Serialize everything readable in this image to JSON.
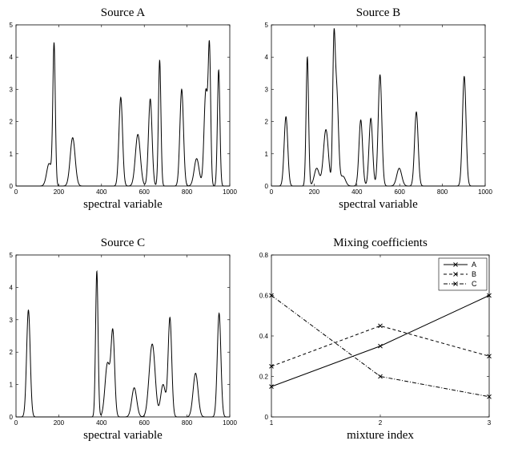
{
  "chart_data": [
    {
      "type": "line",
      "title": "Source A",
      "xlabel": "spectral variable",
      "ylabel": "",
      "xlim": [
        0,
        1000
      ],
      "ylim": [
        0,
        5
      ],
      "xticks": [
        0,
        200,
        400,
        600,
        800,
        1000
      ],
      "yticks": [
        0,
        1,
        2,
        3,
        4,
        5
      ],
      "grid": false,
      "line_color": "#000000",
      "peaks": [
        {
          "x": 155,
          "y": 0.7
        },
        {
          "x": 178,
          "y": 4.35
        },
        {
          "x": 265,
          "y": 1.5
        },
        {
          "x": 490,
          "y": 2.75
        },
        {
          "x": 570,
          "y": 1.6
        },
        {
          "x": 628,
          "y": 2.7
        },
        {
          "x": 672,
          "y": 3.9
        },
        {
          "x": 775,
          "y": 3.0
        },
        {
          "x": 845,
          "y": 0.85
        },
        {
          "x": 888,
          "y": 2.95
        },
        {
          "x": 905,
          "y": 4.1
        },
        {
          "x": 948,
          "y": 3.6
        }
      ]
    },
    {
      "type": "line",
      "title": "Source B",
      "xlabel": "spectral variable",
      "ylabel": "",
      "xlim": [
        0,
        1000
      ],
      "ylim": [
        0,
        5
      ],
      "xticks": [
        0,
        200,
        400,
        600,
        800,
        1000
      ],
      "yticks": [
        0,
        1,
        2,
        3,
        4,
        5
      ],
      "grid": false,
      "line_color": "#000000",
      "peaks": [
        {
          "x": 68,
          "y": 2.15
        },
        {
          "x": 168,
          "y": 4.0
        },
        {
          "x": 212,
          "y": 0.55
        },
        {
          "x": 255,
          "y": 1.75
        },
        {
          "x": 292,
          "y": 3.85
        },
        {
          "x": 305,
          "y": 2.95
        },
        {
          "x": 335,
          "y": 0.3
        },
        {
          "x": 418,
          "y": 2.05
        },
        {
          "x": 465,
          "y": 2.1
        },
        {
          "x": 508,
          "y": 3.45
        },
        {
          "x": 598,
          "y": 0.55
        },
        {
          "x": 678,
          "y": 2.3
        },
        {
          "x": 902,
          "y": 3.4
        }
      ]
    },
    {
      "type": "line",
      "title": "Source C",
      "xlabel": "spectral variable",
      "ylabel": "",
      "xlim": [
        0,
        1000
      ],
      "ylim": [
        0,
        5
      ],
      "xticks": [
        0,
        200,
        400,
        600,
        800,
        1000
      ],
      "yticks": [
        0,
        1,
        2,
        3,
        4,
        5
      ],
      "grid": false,
      "line_color": "#000000",
      "peaks": [
        {
          "x": 58,
          "y": 3.3
        },
        {
          "x": 378,
          "y": 4.5
        },
        {
          "x": 428,
          "y": 1.65
        },
        {
          "x": 453,
          "y": 2.55
        },
        {
          "x": 553,
          "y": 0.9
        },
        {
          "x": 628,
          "y": 1.05
        },
        {
          "x": 642,
          "y": 1.62
        },
        {
          "x": 688,
          "y": 1.0
        },
        {
          "x": 720,
          "y": 3.05
        },
        {
          "x": 840,
          "y": 1.35
        },
        {
          "x": 950,
          "y": 3.2
        }
      ]
    },
    {
      "type": "line",
      "title": "Mixing coefficients",
      "xlabel": "mixture index",
      "ylabel": "",
      "x": [
        1,
        2,
        3
      ],
      "xlim": [
        1,
        3
      ],
      "ylim": [
        0,
        0.8
      ],
      "xticks": [
        1,
        2,
        3
      ],
      "yticks": [
        0,
        0.2,
        0.4,
        0.6,
        0.8
      ],
      "grid": false,
      "legend_position": "top-right",
      "series": [
        {
          "name": "A",
          "values": [
            0.15,
            0.35,
            0.6
          ],
          "dash": "solid",
          "color": "#000000"
        },
        {
          "name": "B",
          "values": [
            0.25,
            0.45,
            0.3
          ],
          "dash": "dashed",
          "color": "#000000"
        },
        {
          "name": "C",
          "values": [
            0.6,
            0.2,
            0.1
          ],
          "dash": "dashdot",
          "color": "#000000"
        }
      ]
    }
  ]
}
